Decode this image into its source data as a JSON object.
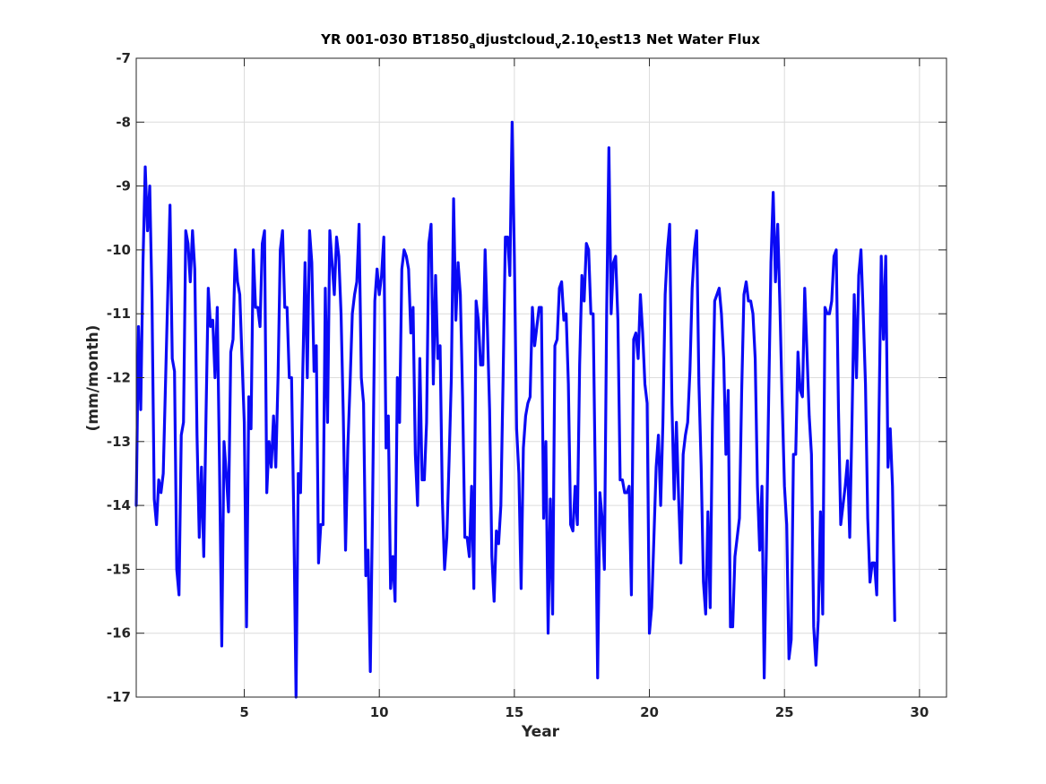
{
  "chart_data": {
    "type": "line",
    "title": {
      "main": "YR 001-030 BT1850",
      "sub1": "a",
      "part2": "djustcloud",
      "sub2": "v",
      "part3": "2.10",
      "sub3": "t",
      "part4": "est13 Net Water Flux"
    },
    "xlabel": "Year",
    "ylabel": "(mm/month)",
    "xlim": [
      1,
      31
    ],
    "ylim": [
      -17,
      -7
    ],
    "xticks": [
      5,
      10,
      15,
      20,
      25,
      30
    ],
    "yticks": [
      -17,
      -16,
      -15,
      -14,
      -13,
      -12,
      -11,
      -10,
      -9,
      -8,
      -7
    ],
    "grid": true,
    "colors": {
      "line": "#0a0af5",
      "grid": "#dcdcdc",
      "axes": "#262626"
    },
    "series": [
      {
        "x_start": 1,
        "x_step": 0.0833333,
        "values": [
          -14.0,
          -11.2,
          -12.5,
          -10.2,
          -8.7,
          -9.7,
          -9.0,
          -10.8,
          -13.9,
          -14.3,
          -13.6,
          -13.8,
          -13.5,
          -12.1,
          -10.7,
          -9.3,
          -11.7,
          -11.9,
          -15.0,
          -15.4,
          -12.9,
          -12.7,
          -9.7,
          -9.9,
          -10.5,
          -9.7,
          -10.3,
          -12.9,
          -14.5,
          -13.4,
          -14.8,
          -12.6,
          -10.6,
          -11.2,
          -11.1,
          -12.0,
          -10.9,
          -13.4,
          -16.2,
          -13.0,
          -13.5,
          -14.1,
          -11.6,
          -11.4,
          -10.0,
          -10.5,
          -10.7,
          -11.7,
          -12.7,
          -15.9,
          -12.3,
          -12.8,
          -10.0,
          -10.9,
          -10.9,
          -11.2,
          -9.9,
          -9.7,
          -13.8,
          -13.0,
          -13.4,
          -12.6,
          -13.4,
          -12.0,
          -10.0,
          -9.7,
          -10.9,
          -10.9,
          -12.0,
          -12.0,
          -14.2,
          -17.0,
          -13.5,
          -13.8,
          -11.9,
          -10.2,
          -12.0,
          -9.7,
          -10.2,
          -11.9,
          -11.5,
          -14.9,
          -14.3,
          -14.3,
          -10.6,
          -12.7,
          -9.7,
          -10.2,
          -10.7,
          -9.8,
          -10.1,
          -11.0,
          -12.6,
          -14.7,
          -13.1,
          -12.1,
          -11.0,
          -10.7,
          -10.5,
          -9.6,
          -12.0,
          -12.4,
          -15.1,
          -14.7,
          -16.6,
          -14.0,
          -10.8,
          -10.3,
          -10.7,
          -10.4,
          -9.8,
          -13.1,
          -12.6,
          -15.3,
          -14.8,
          -15.5,
          -12.0,
          -12.7,
          -10.3,
          -10.0,
          -10.1,
          -10.3,
          -11.3,
          -10.9,
          -13.2,
          -14.0,
          -11.7,
          -13.6,
          -13.6,
          -12.7,
          -9.9,
          -9.6,
          -12.1,
          -10.4,
          -11.7,
          -11.5,
          -13.9,
          -15.0,
          -14.5,
          -13.3,
          -12.0,
          -9.2,
          -11.1,
          -10.2,
          -10.7,
          -12.3,
          -14.5,
          -14.5,
          -14.8,
          -13.7,
          -15.3,
          -10.8,
          -11.1,
          -11.8,
          -11.8,
          -10.0,
          -11.2,
          -12.5,
          -14.8,
          -15.5,
          -14.4,
          -14.6,
          -14.0,
          -12.0,
          -9.8,
          -9.8,
          -10.4,
          -8.0,
          -10.1,
          -12.8,
          -13.5,
          -15.3,
          -13.1,
          -12.6,
          -12.4,
          -12.3,
          -10.9,
          -11.5,
          -11.2,
          -10.9,
          -10.9,
          -14.2,
          -13.0,
          -16.0,
          -13.9,
          -15.7,
          -11.5,
          -11.4,
          -10.6,
          -10.5,
          -11.1,
          -11.0,
          -12.1,
          -14.3,
          -14.4,
          -13.7,
          -14.3,
          -11.8,
          -10.4,
          -10.8,
          -9.9,
          -10.0,
          -11.0,
          -11.0,
          -13.7,
          -16.7,
          -13.8,
          -14.2,
          -15.0,
          -11.0,
          -8.4,
          -11.0,
          -10.2,
          -10.1,
          -11.1,
          -13.6,
          -13.6,
          -13.8,
          -13.8,
          -13.7,
          -15.4,
          -11.4,
          -11.3,
          -11.7,
          -10.7,
          -11.3,
          -12.1,
          -12.4,
          -16.0,
          -15.6,
          -14.5,
          -13.4,
          -12.9,
          -14.0,
          -12.7,
          -10.7,
          -10.0,
          -9.6,
          -12.4,
          -13.9,
          -12.7,
          -13.9,
          -14.9,
          -13.2,
          -12.9,
          -12.7,
          -11.9,
          -10.6,
          -10.0,
          -9.7,
          -12.1,
          -13.4,
          -15.2,
          -15.7,
          -14.1,
          -15.6,
          -12.7,
          -10.8,
          -10.7,
          -10.6,
          -11.0,
          -11.7,
          -13.2,
          -12.2,
          -15.9,
          -15.9,
          -14.8,
          -14.5,
          -14.2,
          -12.2,
          -10.7,
          -10.5,
          -10.8,
          -10.8,
          -11.0,
          -11.7,
          -13.7,
          -14.7,
          -13.7,
          -16.7,
          -14.6,
          -12.3,
          -10.2,
          -9.1,
          -10.5,
          -9.6,
          -10.9,
          -12.4,
          -13.7,
          -14.3,
          -16.4,
          -16.1,
          -13.2,
          -13.2,
          -11.6,
          -12.2,
          -12.3,
          -10.6,
          -11.6,
          -12.6,
          -13.2,
          -15.9,
          -16.5,
          -15.8,
          -14.1,
          -15.7,
          -10.9,
          -11.0,
          -11.0,
          -10.8,
          -10.1,
          -10.0,
          -12.5,
          -14.3,
          -14.0,
          -13.7,
          -13.3,
          -14.5,
          -12.7,
          -10.7,
          -12.0,
          -10.4,
          -10.0,
          -11.0,
          -12.1,
          -14.2,
          -15.2,
          -14.9,
          -14.9,
          -15.4,
          -12.6,
          -10.1,
          -11.4,
          -10.1,
          -13.4,
          -12.8,
          -13.7,
          -15.8
        ]
      }
    ]
  }
}
